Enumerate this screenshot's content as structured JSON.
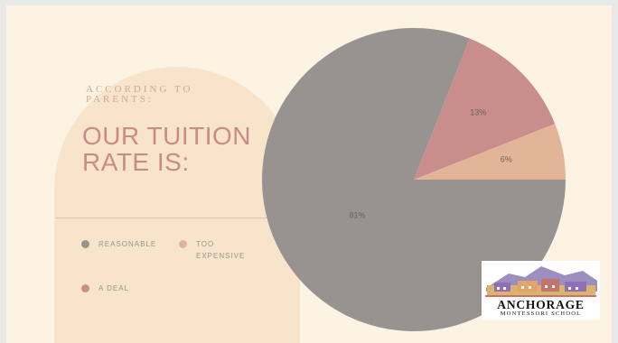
{
  "slide": {
    "eyebrow": "ACCORDING TO PARENTS:",
    "heading": "OUR TUITION RATE IS:"
  },
  "legend": [
    {
      "label": "REASONABLE",
      "color": "#979391"
    },
    {
      "label": "TOO EXPENSIVE",
      "color": "#e2b599"
    },
    {
      "label": "A DEAL",
      "color": "#c98d8b"
    }
  ],
  "chart_data": {
    "type": "pie",
    "categories": [
      "Reasonable",
      "Too Expensive",
      "A Deal"
    ],
    "values": [
      81,
      6,
      13
    ],
    "value_labels": [
      "81%",
      "6%",
      "13%"
    ],
    "colors": [
      "#979391",
      "#e2b599",
      "#c98d8b"
    ],
    "legend": "left"
  },
  "logo": {
    "word": "ANCHORAGE",
    "sub": "MONTESSORI SCHOOL"
  },
  "colors": {
    "background": "#fdf3e3",
    "arch": "#f8e4cb",
    "heading": "#c88c88"
  }
}
